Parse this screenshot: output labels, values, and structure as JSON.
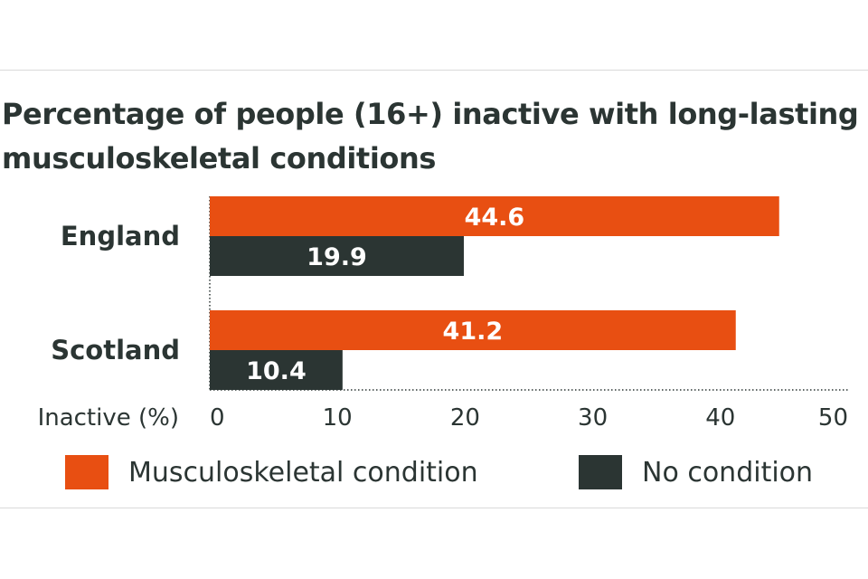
{
  "chart_data": {
    "type": "bar",
    "orientation": "horizontal",
    "title": "Percentage of people (16+) inactive with long-lasting musculoskeletal conditions",
    "xlabel": "Inactive (%)",
    "categories": [
      "England",
      "Scotland"
    ],
    "series": [
      {
        "name": "Musculoskeletal condition",
        "values": [
          44.6,
          41.2
        ],
        "labels": [
          "44.6",
          "41.2"
        ],
        "color": "#e84f12"
      },
      {
        "name": "No condition",
        "values": [
          19.9,
          10.4
        ],
        "labels": [
          "19.9",
          "10.4"
        ],
        "color": "#2b3533"
      }
    ],
    "xlim": [
      0,
      50
    ],
    "xticks": [
      "0",
      "10",
      "20",
      "30",
      "40",
      "50"
    ],
    "grid": false,
    "legend_position": "bottom"
  }
}
